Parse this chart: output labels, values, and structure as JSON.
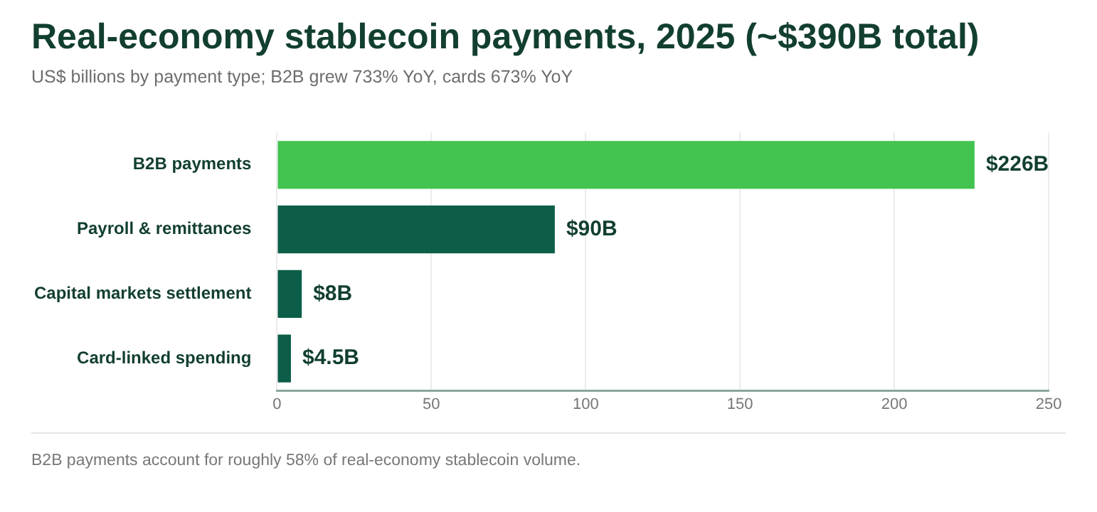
{
  "chart_data": {
    "type": "bar",
    "orientation": "horizontal",
    "title": "Real-economy stablecoin payments, 2025 (~$390B total)",
    "subtitle": "US$ billions by payment type; B2B grew 733% YoY, cards 673% YoY",
    "categories": [
      "B2B payments",
      "Payroll & remittances",
      "Capital markets settlement",
      "Card-linked spending"
    ],
    "values": [
      226,
      90,
      8,
      4.5
    ],
    "colors": [
      "#43c350",
      "#0c5e48",
      "#0c5e48",
      "#0c5e48"
    ],
    "value_labels": [
      "$226B",
      "$90B",
      "$8B",
      "$4.5B"
    ],
    "xlim": [
      0,
      250
    ],
    "xticks": [
      0,
      50,
      100,
      150,
      200,
      250
    ],
    "grid": "x",
    "legend": false,
    "annotations": [
      "B2B payments account for roughly 58% of real-economy stablecoin volume."
    ]
  }
}
